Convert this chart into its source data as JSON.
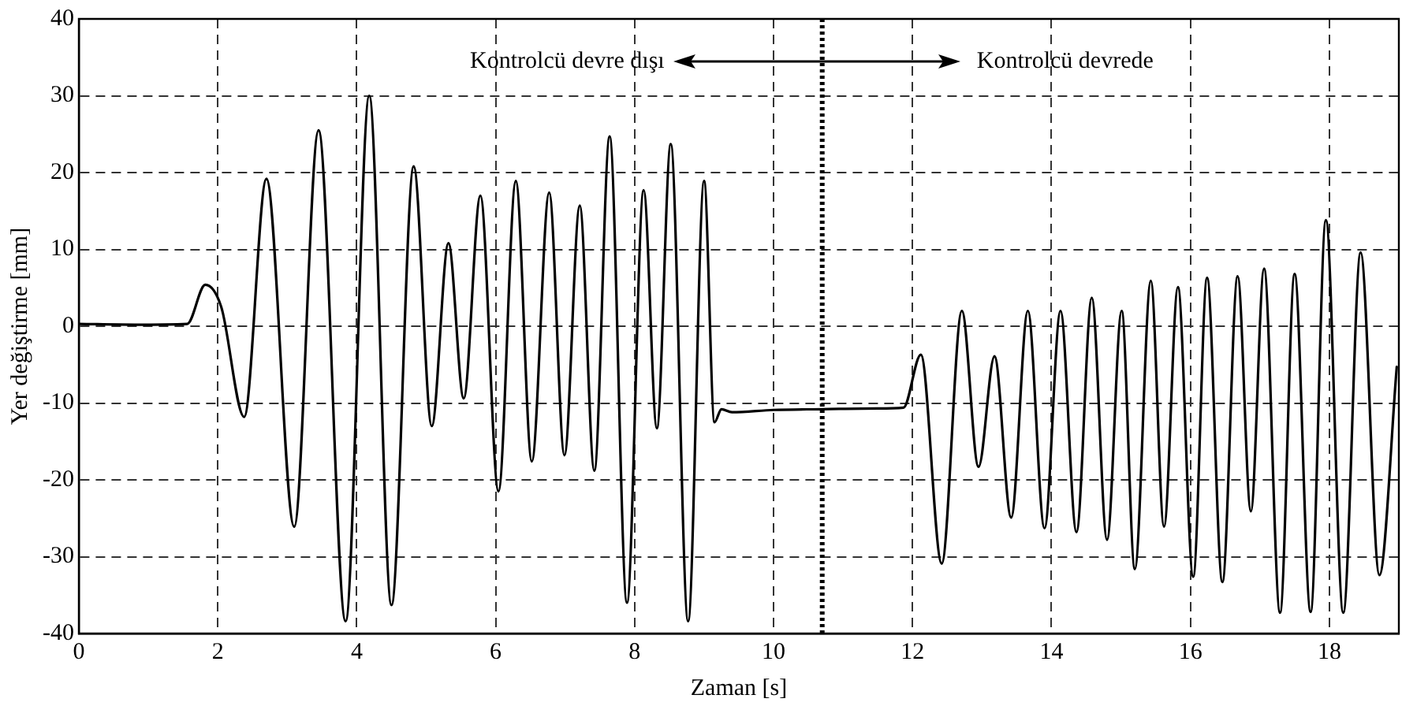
{
  "chart_data": {
    "type": "line",
    "xlabel": "Zaman [s]",
    "ylabel": "Yer değiştirme [mm]",
    "annotations": [
      "Kontrolcü devre dışı",
      "Kontrolcü devrede"
    ],
    "xlim": [
      0,
      19
    ],
    "xticks": [
      0,
      2,
      4,
      6,
      8,
      10,
      12,
      14,
      16,
      18
    ],
    "ylim": [
      -40,
      40
    ],
    "yticks": [
      -40,
      -30,
      -20,
      -10,
      0,
      10,
      20,
      30,
      40
    ],
    "grid": true,
    "legend": false,
    "marker": "none",
    "line_style": "solid",
    "ref_lines": [
      {
        "axis": "x",
        "value": 10.7,
        "color": "#000000",
        "line_style": "dotted"
      }
    ],
    "series": [
      {
        "color": "#000000",
        "x": [
          0,
          0.8,
          1.56,
          1.82,
          2.05,
          2.38,
          2.7,
          3.1,
          3.45,
          3.84,
          4.18,
          4.5,
          4.82,
          5.08,
          5.32,
          5.54,
          5.78,
          6.04,
          6.29,
          6.52,
          6.77,
          6.99,
          7.21,
          7.42,
          7.64,
          7.89,
          8.13,
          8.32,
          8.52,
          8.77,
          9.0,
          9.15,
          9.25,
          9.4,
          10.0,
          10.7,
          11.5,
          11.87,
          12.12,
          12.42,
          12.71,
          12.95,
          13.18,
          13.42,
          13.66,
          13.9,
          14.13,
          14.36,
          14.58,
          14.8,
          15.01,
          15.2,
          15.43,
          15.62,
          15.82,
          16.04,
          16.24,
          16.46,
          16.68,
          16.87,
          17.06,
          17.29,
          17.5,
          17.73,
          17.95,
          18.2,
          18.45,
          18.72,
          18.97
        ],
        "values": [
          0.3,
          0.2,
          0.3,
          5.4,
          2.5,
          -11.8,
          19.2,
          -26.1,
          25.5,
          -38.4,
          30.0,
          -36.3,
          20.8,
          -13.0,
          10.8,
          -9.4,
          17.0,
          -21.5,
          18.9,
          -17.6,
          17.4,
          -16.8,
          15.7,
          -18.8,
          24.7,
          -36.0,
          17.7,
          -13.3,
          23.7,
          -38.4,
          18.9,
          -12.5,
          -10.8,
          -11.2,
          -10.9,
          -10.8,
          -10.7,
          -10.6,
          -3.7,
          -30.9,
          2.0,
          -18.3,
          -3.9,
          -24.9,
          2.0,
          -26.3,
          2.0,
          -26.8,
          3.7,
          -27.8,
          2.0,
          -31.6,
          5.9,
          -26.1,
          5.1,
          -32.6,
          6.3,
          -33.3,
          6.5,
          -24.1,
          7.5,
          -37.3,
          6.8,
          -37.2,
          13.8,
          -37.3,
          9.6,
          -32.4,
          -5.3
        ]
      }
    ]
  }
}
